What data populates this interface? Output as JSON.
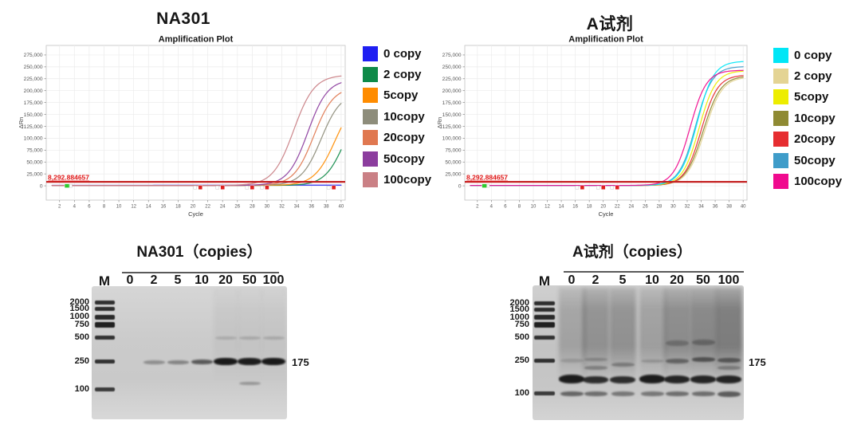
{
  "chart_data": [
    {
      "type": "line",
      "panel_title": "NA301",
      "title": "Amplification Plot",
      "xlabel": "Cycle",
      "ylabel": "ΔRn",
      "xlim": [
        0.2,
        40.55
      ],
      "ylim": [
        -30000,
        295000
      ],
      "x_ticks": [
        2,
        4,
        6,
        8,
        10,
        12,
        14,
        16,
        18,
        20,
        22,
        24,
        26,
        28,
        30,
        32,
        34,
        36,
        38,
        40
      ],
      "y_tick_values": [
        0,
        25000,
        50000,
        75000,
        100000,
        125000,
        150000,
        175000,
        200000,
        225000,
        250000,
        275000
      ],
      "y_tick_labels": [
        "0",
        "25,000",
        "50,000",
        "75,000",
        "100,000",
        "125,000",
        "150,000",
        "175,000",
        "200,000",
        "225,000",
        "250,000",
        "275,000"
      ],
      "grid": true,
      "legend_position": "right",
      "threshold": {
        "value": 8292.884657,
        "label": "8,292.884657",
        "color": "#c42222"
      },
      "legend": [
        {
          "label": "0 copy",
          "color": "#1f1ff2"
        },
        {
          "label": "2 copy",
          "color": "#0e8a48"
        },
        {
          "label": "5copy",
          "color": "#ff8c00"
        },
        {
          "label": "10copy",
          "color": "#8e8d7b"
        },
        {
          "label": "20copy",
          "color": "#e07850"
        },
        {
          "label": "50copy",
          "color": "#8c3d9e"
        },
        {
          "label": "100copy",
          "color": "#ca8085"
        }
      ],
      "series": [
        {
          "name": "0 copy",
          "color": "#1f1ff2",
          "base": 1000,
          "plateau": 1400,
          "mid": 20,
          "k": 0.2,
          "ct": null,
          "end_value": 1200
        },
        {
          "name": "2 copy",
          "color": "#0e8a48",
          "base": 800,
          "plateau": 185000,
          "mid": 40.5,
          "k": 0.75,
          "ct": 36.4,
          "end_value": 75000
        },
        {
          "name": "5copy",
          "color": "#ff8c00",
          "base": 800,
          "plateau": 190000,
          "mid": 39.2,
          "k": 0.72,
          "ct": 34.7,
          "end_value": 123000
        },
        {
          "name": "10copy",
          "color": "#8e8d7b",
          "base": 800,
          "plateau": 196000,
          "mid": 37.3,
          "k": 0.75,
          "ct": 33.1,
          "end_value": 175000
        },
        {
          "name": "20copy",
          "color": "#e07850",
          "base": 800,
          "plateau": 208000,
          "mid": 36.3,
          "k": 0.75,
          "ct": 32.1,
          "end_value": 199000
        },
        {
          "name": "50copy",
          "color": "#8c3d9e",
          "base": 800,
          "plateau": 224000,
          "mid": 35.5,
          "k": 0.75,
          "ct": 31.2,
          "end_value": 219000
        },
        {
          "name": "100copy",
          "color": "#ca8085",
          "base": 800,
          "plateau": 233000,
          "mid": 33.6,
          "k": 0.72,
          "ct": 29.3,
          "end_value": 230000
        }
      ],
      "markers": {
        "green_cycles": [
          3
        ],
        "red_cycles": [
          21,
          24,
          28,
          30,
          39
        ]
      }
    },
    {
      "type": "line",
      "panel_title": "A试剂",
      "title": "Amplification Plot",
      "xlabel": "Cycle",
      "ylabel": "ΔRn",
      "xlim": [
        0.2,
        40.55
      ],
      "ylim": [
        -30000,
        295000
      ],
      "x_ticks": [
        2,
        4,
        6,
        8,
        10,
        12,
        14,
        16,
        18,
        20,
        22,
        24,
        26,
        28,
        30,
        32,
        34,
        36,
        38,
        40
      ],
      "y_tick_values": [
        0,
        25000,
        50000,
        75000,
        100000,
        125000,
        150000,
        175000,
        200000,
        225000,
        250000,
        275000
      ],
      "y_tick_labels": [
        "0",
        "25,000",
        "50,000",
        "75,000",
        "100,000",
        "125,000",
        "150,000",
        "175,000",
        "200,000",
        "225,000",
        "250,000",
        "275,000"
      ],
      "grid": true,
      "legend_position": "right",
      "threshold": {
        "value": 8292.884657,
        "label": "8,292.884657",
        "color": "#c42222"
      },
      "legend": [
        {
          "label": "0 copy",
          "color": "#00e6f6"
        },
        {
          "label": "2 copy",
          "color": "#e4d494"
        },
        {
          "label": "5copy",
          "color": "#eded00"
        },
        {
          "label": "10copy",
          "color": "#8f8a33"
        },
        {
          "label": "20copy",
          "color": "#e62d30"
        },
        {
          "label": "50copy",
          "color": "#3f9cc9"
        },
        {
          "label": "100copy",
          "color": "#f00a8e"
        }
      ],
      "series": [
        {
          "name": "2 copy",
          "color": "#e4d494",
          "base": 700,
          "plateau": 229000,
          "mid": 34.5,
          "k": 0.8,
          "ct": 30.4,
          "end_value": 228000
        },
        {
          "name": "10copy",
          "color": "#8f8a33",
          "base": 700,
          "plateau": 231000,
          "mid": 34.3,
          "k": 0.8,
          "ct": 30.2,
          "end_value": 230000
        },
        {
          "name": "20copy",
          "color": "#e62d30",
          "base": 700,
          "plateau": 233000,
          "mid": 34.0,
          "k": 0.85,
          "ct": 30.1,
          "end_value": 232000
        },
        {
          "name": "5copy",
          "color": "#eded00",
          "base": 700,
          "plateau": 242000,
          "mid": 33.7,
          "k": 0.85,
          "ct": 29.7,
          "end_value": 241000
        },
        {
          "name": "50copy",
          "color": "#3f9cc9",
          "base": 700,
          "plateau": 251000,
          "mid": 33.2,
          "k": 0.85,
          "ct": 29.2,
          "end_value": 250000
        },
        {
          "name": "0 copy",
          "color": "#00e6f6",
          "base": 700,
          "plateau": 262000,
          "mid": 33.4,
          "k": 0.85,
          "ct": 29.4,
          "end_value": 260000
        },
        {
          "name": "100copy",
          "color": "#f00a8e",
          "base": 700,
          "plateau": 243000,
          "mid": 32.4,
          "k": 0.85,
          "ct": 28.4,
          "end_value": 242000
        }
      ],
      "markers": {
        "green_cycles": [
          3
        ],
        "red_cycles": [
          17,
          20,
          22
        ]
      }
    }
  ],
  "gels": [
    {
      "title": "NA301（copies）",
      "marker_lane": "M",
      "lane_labels": [
        "0",
        "2",
        "5",
        "10",
        "20",
        "50",
        "100"
      ],
      "size_annotation": "175",
      "annotation_f": 0.57,
      "ladder": [
        {
          "bp": "2000",
          "f": 0.12,
          "h": 5,
          "o": 0.88
        },
        {
          "bp": "1500",
          "f": 0.172,
          "h": 5,
          "o": 0.88
        },
        {
          "bp": "1000",
          "f": 0.233,
          "h": 6,
          "o": 0.9
        },
        {
          "bp": "750",
          "f": 0.292,
          "h": 7,
          "o": 0.95
        },
        {
          "bp": "500",
          "f": 0.388,
          "h": 5,
          "o": 0.85
        },
        {
          "bp": "250",
          "f": 0.568,
          "h": 5,
          "o": 0.85
        },
        {
          "bp": "100",
          "f": 0.775,
          "h": 5,
          "o": 0.8
        }
      ],
      "lanes": [
        {
          "label": "0",
          "smear": 0,
          "bands": []
        },
        {
          "label": "2",
          "smear": 0,
          "bands": [
            {
              "f": 0.57,
              "o": 0.32,
              "h": 5
            }
          ]
        },
        {
          "label": "5",
          "smear": 0,
          "bands": [
            {
              "f": 0.57,
              "o": 0.38,
              "h": 5
            }
          ]
        },
        {
          "label": "10",
          "smear": 0,
          "bands": [
            {
              "f": 0.568,
              "o": 0.62,
              "h": 6
            }
          ]
        },
        {
          "label": "20",
          "smear": 0.04,
          "bands": [
            {
              "f": 0.565,
              "o": 0.97,
              "h": 9
            },
            {
              "f": 0.388,
              "o": 0.14,
              "h": 4
            }
          ]
        },
        {
          "label": "50",
          "smear": 0.04,
          "bands": [
            {
              "f": 0.565,
              "o": 0.95,
              "h": 9
            },
            {
              "f": 0.388,
              "o": 0.16,
              "h": 4
            },
            {
              "f": 0.73,
              "o": 0.28,
              "h": 4
            }
          ]
        },
        {
          "label": "100",
          "smear": 0.04,
          "bands": [
            {
              "f": 0.565,
              "o": 0.97,
              "h": 9
            },
            {
              "f": 0.388,
              "o": 0.16,
              "h": 4
            }
          ]
        }
      ]
    },
    {
      "title": "A试剂（copies）",
      "marker_lane": "M",
      "lane_labels": [
        "0",
        "2",
        "5",
        "10",
        "20",
        "50",
        "100"
      ],
      "size_annotation": "175",
      "annotation_f": 0.56,
      "ladder": [
        {
          "bp": "2000",
          "f": 0.136,
          "h": 5,
          "o": 0.88
        },
        {
          "bp": "1500",
          "f": 0.183,
          "h": 5,
          "o": 0.88
        },
        {
          "bp": "1000",
          "f": 0.237,
          "h": 6,
          "o": 0.9
        },
        {
          "bp": "750",
          "f": 0.29,
          "h": 7,
          "o": 0.95
        },
        {
          "bp": "500",
          "f": 0.385,
          "h": 5,
          "o": 0.85
        },
        {
          "bp": "250",
          "f": 0.562,
          "h": 5,
          "o": 0.85
        },
        {
          "bp": "100",
          "f": 0.8,
          "h": 5,
          "o": 0.8
        }
      ],
      "lanes": [
        {
          "label": "0",
          "smear": 0.2,
          "bands": [
            {
              "f": 0.695,
              "o": 0.95,
              "h": 11
            },
            {
              "f": 0.805,
              "o": 0.55,
              "h": 6
            },
            {
              "f": 0.56,
              "o": 0.15,
              "h": 5
            }
          ]
        },
        {
          "label": "2",
          "smear": 0.3,
          "bands": [
            {
              "f": 0.7,
              "o": 0.85,
              "h": 9
            },
            {
              "f": 0.805,
              "o": 0.5,
              "h": 6
            },
            {
              "f": 0.61,
              "o": 0.3,
              "h": 5
            },
            {
              "f": 0.55,
              "o": 0.22,
              "h": 4
            }
          ]
        },
        {
          "label": "5",
          "smear": 0.3,
          "bands": [
            {
              "f": 0.7,
              "o": 0.85,
              "h": 9
            },
            {
              "f": 0.805,
              "o": 0.45,
              "h": 6
            },
            {
              "f": 0.59,
              "o": 0.32,
              "h": 5
            }
          ]
        },
        {
          "label": "10",
          "smear": 0.22,
          "bands": [
            {
              "f": 0.695,
              "o": 0.95,
              "h": 11
            },
            {
              "f": 0.805,
              "o": 0.45,
              "h": 6
            },
            {
              "f": 0.56,
              "o": 0.18,
              "h": 4
            }
          ]
        },
        {
          "label": "20",
          "smear": 0.33,
          "bands": [
            {
              "f": 0.7,
              "o": 0.9,
              "h": 10
            },
            {
              "f": 0.805,
              "o": 0.5,
              "h": 6
            },
            {
              "f": 0.56,
              "o": 0.45,
              "h": 6
            },
            {
              "f": 0.43,
              "o": 0.25,
              "h": 7
            }
          ]
        },
        {
          "label": "50",
          "smear": 0.36,
          "bands": [
            {
              "f": 0.7,
              "o": 0.9,
              "h": 10
            },
            {
              "f": 0.805,
              "o": 0.5,
              "h": 6
            },
            {
              "f": 0.55,
              "o": 0.55,
              "h": 6
            },
            {
              "f": 0.425,
              "o": 0.3,
              "h": 7
            }
          ]
        },
        {
          "label": "100",
          "smear": 0.42,
          "bands": [
            {
              "f": 0.7,
              "o": 0.9,
              "h": 10
            },
            {
              "f": 0.805,
              "o": 0.6,
              "h": 7
            },
            {
              "f": 0.555,
              "o": 0.5,
              "h": 6
            },
            {
              "f": 0.61,
              "o": 0.3,
              "h": 5
            }
          ]
        }
      ]
    }
  ]
}
